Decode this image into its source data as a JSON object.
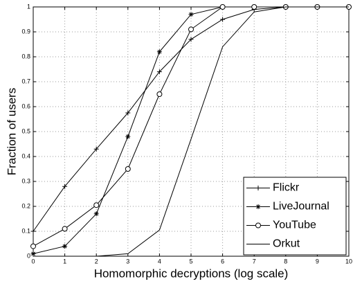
{
  "chart_data": {
    "type": "line",
    "xlabel": "Homomorphic decryptions (log scale)",
    "ylabel": "Fraction of users",
    "x": [
      0,
      1,
      2,
      3,
      4,
      5,
      6,
      7,
      8,
      9,
      10
    ],
    "series": [
      {
        "name": "Flickr",
        "color": "#000000",
        "marker": "plus",
        "values": [
          0.1,
          0.28,
          0.43,
          0.575,
          0.74,
          0.87,
          0.95,
          0.99,
          1,
          1,
          1
        ]
      },
      {
        "name": "LiveJournal",
        "color": "#000000",
        "marker": "asterisk",
        "values": [
          0.01,
          0.04,
          0.17,
          0.48,
          0.82,
          0.97,
          1,
          1,
          1,
          1,
          1
        ]
      },
      {
        "name": "YouTube",
        "color": "#000000",
        "marker": "circle",
        "values": [
          0.04,
          0.11,
          0.205,
          0.35,
          0.65,
          0.91,
          1,
          1,
          1,
          1,
          1
        ]
      },
      {
        "name": "Orkut",
        "color": "#000000",
        "marker": "none",
        "values": [
          0,
          0,
          0,
          0.01,
          0.105,
          0.47,
          0.84,
          0.98,
          1,
          1,
          1
        ]
      }
    ],
    "xlim": [
      0,
      10
    ],
    "xticks": [
      0,
      1,
      2,
      3,
      4,
      5,
      6,
      7,
      8,
      9,
      10
    ],
    "ylim": [
      0,
      1
    ],
    "yticks": [
      0,
      0.1,
      0.2,
      0.3,
      0.4,
      0.5,
      0.6,
      0.7,
      0.8,
      0.9,
      1
    ],
    "grid": true,
    "legend": "lower right"
  }
}
